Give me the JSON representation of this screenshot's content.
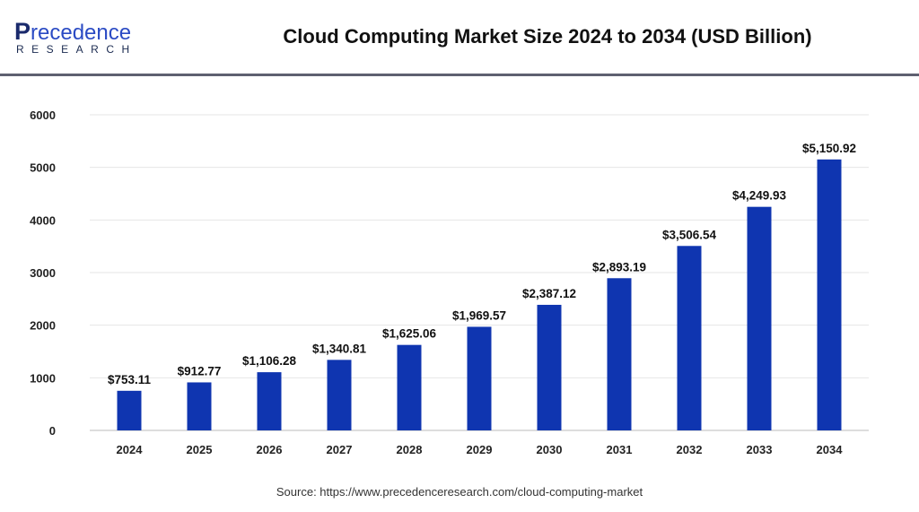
{
  "header": {
    "logo_text": "Precedence RESEARCH",
    "title": "Cloud Computing Market Size 2024 to 2034 (USD Billion)"
  },
  "source": "Source: https://www.precedenceresearch.com/cloud-computing-market",
  "chart_data": {
    "type": "bar",
    "title": "Cloud Computing Market Size 2024 to 2034 (USD Billion)",
    "categories": [
      "2024",
      "2025",
      "2026",
      "2027",
      "2028",
      "2029",
      "2030",
      "2031",
      "2032",
      "2033",
      "2034"
    ],
    "values": [
      753.11,
      912.77,
      1106.28,
      1340.81,
      1625.06,
      1969.57,
      2387.12,
      2893.19,
      3506.54,
      4249.93,
      5150.92
    ],
    "data_labels": [
      "$753.11",
      "$912.77",
      "$1,106.28",
      "$1,340.81",
      "$1,625.06",
      "$1,969.57",
      "$2,387.12",
      "$2,893.19",
      "$3,506.54",
      "$4,249.93",
      "$5,150.92"
    ],
    "yticks": [
      0,
      1000,
      2000,
      3000,
      4000,
      5000,
      6000
    ],
    "ylim": [
      0,
      6000
    ],
    "grid": true,
    "xlabel": "",
    "ylabel": "",
    "colors": {
      "bar": "#0f35b0",
      "grid": "#e6e6e6"
    }
  }
}
